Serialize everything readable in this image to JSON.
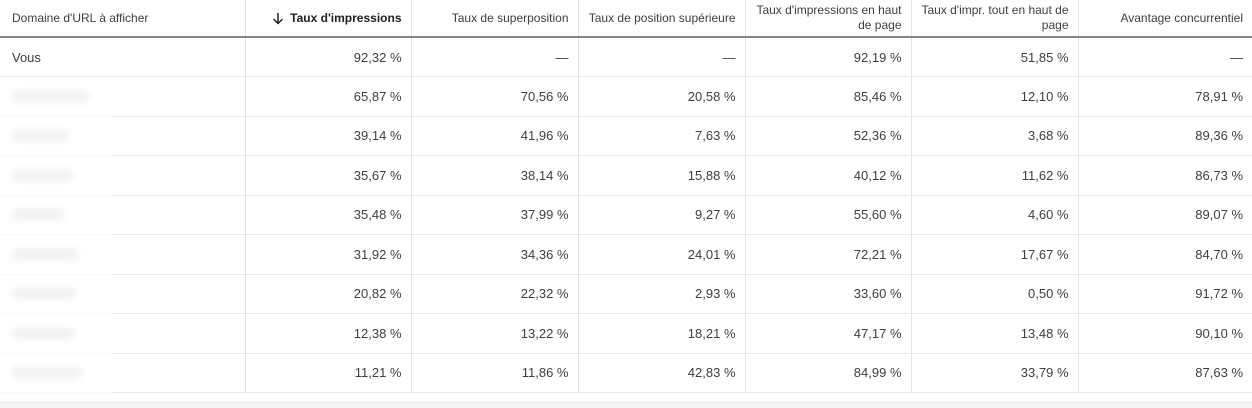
{
  "table": {
    "sort_icon_direction": "down",
    "columns": [
      {
        "id": "domain",
        "label": "Domaine d'URL à afficher",
        "align": "left",
        "sorted": false
      },
      {
        "id": "impression_share",
        "label": "Taux d'impressions",
        "align": "right",
        "sorted": true
      },
      {
        "id": "overlap_rate",
        "label": "Taux de superposition",
        "align": "right",
        "sorted": false
      },
      {
        "id": "position_above_rate",
        "label": "Taux de position supérieure",
        "align": "right",
        "sorted": false
      },
      {
        "id": "top_of_page_rate",
        "label": "Taux d'impressions en haut de page",
        "align": "right",
        "sorted": false
      },
      {
        "id": "abs_top_of_page_rate",
        "label": "Taux d'impr. tout en haut de page",
        "align": "right",
        "sorted": false
      },
      {
        "id": "outranking_share",
        "label": "Avantage concurrentiel",
        "align": "right",
        "sorted": false
      }
    ],
    "rows": [
      {
        "domain": "Vous",
        "redacted": false,
        "redact_width": 0,
        "values": [
          "92,32 %",
          "—",
          "—",
          "92,19 %",
          "51,85 %",
          "—"
        ]
      },
      {
        "domain": "",
        "redacted": true,
        "redact_width": 78,
        "values": [
          "65,87 %",
          "70,56 %",
          "20,58 %",
          "85,46 %",
          "12,10 %",
          "78,91 %"
        ]
      },
      {
        "domain": "",
        "redacted": true,
        "redact_width": 57,
        "values": [
          "39,14 %",
          "41,96 %",
          "7,63 %",
          "52,36 %",
          "3,68 %",
          "89,36 %"
        ]
      },
      {
        "domain": "",
        "redacted": true,
        "redact_width": 62,
        "values": [
          "35,67 %",
          "38,14 %",
          "15,88 %",
          "40,12 %",
          "11,62 %",
          "86,73 %"
        ]
      },
      {
        "domain": "",
        "redacted": true,
        "redact_width": 53,
        "values": [
          "35,48 %",
          "37,99 %",
          "9,27 %",
          "55,60 %",
          "4,60 %",
          "89,07 %"
        ]
      },
      {
        "domain": "",
        "redacted": true,
        "redact_width": 67,
        "values": [
          "31,92 %",
          "34,36 %",
          "24,01 %",
          "72,21 %",
          "17,67 %",
          "84,70 %"
        ]
      },
      {
        "domain": "",
        "redacted": true,
        "redact_width": 64,
        "values": [
          "20,82 %",
          "22,32 %",
          "2,93 %",
          "33,60 %",
          "0,50 %",
          "91,72 %"
        ]
      },
      {
        "domain": "",
        "redacted": true,
        "redact_width": 62,
        "values": [
          "12,38 %",
          "13,22 %",
          "18,21 %",
          "47,17 %",
          "13,48 %",
          "90,10 %"
        ]
      },
      {
        "domain": "",
        "redacted": true,
        "redact_width": 70,
        "values": [
          "11,21 %",
          "11,86 %",
          "42,83 %",
          "84,99 %",
          "33,79 %",
          "87,63 %"
        ]
      }
    ]
  },
  "colors": {
    "header_text": "#3c4043",
    "sorted_header_text": "#202124",
    "cell_text": "#3c4043",
    "header_underline": "#81868b",
    "grid_line": "#e1e3e6",
    "row_line": "#e7e8ea",
    "footer_strip": "#f5f6f7",
    "redaction": "#c6c6c6"
  }
}
